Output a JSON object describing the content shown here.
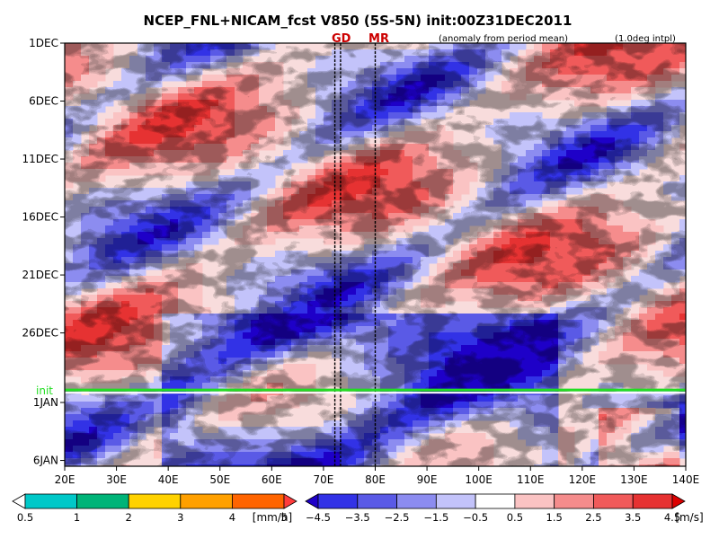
{
  "chart_data": {
    "type": "heatmap",
    "title": "NCEP_FNL+NICAM_fcst V850 (5S-5N) init:00Z31DEC2011",
    "subtitle_left": "(anomaly from period mean)",
    "subtitle_right": "(1.0deg intpl)",
    "xaxis": {
      "ticks": [
        "20E",
        "30E",
        "40E",
        "50E",
        "60E",
        "70E",
        "80E",
        "90E",
        "100E",
        "110E",
        "120E",
        "130E",
        "140E"
      ],
      "tick_values": [
        20,
        30,
        40,
        50,
        60,
        70,
        80,
        90,
        100,
        110,
        120,
        130,
        140
      ],
      "range": [
        20,
        140
      ]
    },
    "yaxis": {
      "ticks": [
        "1DEC",
        "6DEC",
        "11DEC",
        "16DEC",
        "21DEC",
        "26DEC",
        "1JAN",
        "6JAN"
      ],
      "tick_days": [
        0,
        5,
        10,
        15,
        20,
        25,
        31,
        36
      ],
      "range_days": [
        0,
        36.5
      ],
      "direction": "down"
    },
    "markers": [
      {
        "label": "GD",
        "lon": [
          72.2,
          73.3
        ]
      },
      {
        "label": "MR",
        "lon": [
          80
        ]
      }
    ],
    "init_line": {
      "label": "init",
      "day": 30
    }
  },
  "colorbar_precip": {
    "labels": [
      "0.5",
      "1",
      "2",
      "3",
      "4",
      "5"
    ],
    "unit": "[mm/h]",
    "colors": [
      "#ffffff",
      "#00c8c8",
      "#00b478",
      "#ffd200",
      "#ffa000",
      "#ff6400",
      "#ff3c3c"
    ]
  },
  "colorbar_wind": {
    "labels": [
      "−4.5",
      "−3.5",
      "−2.5",
      "−1.5",
      "−0.5",
      "0.5",
      "1.5",
      "2.5",
      "3.5",
      "4.5"
    ],
    "unit": "[m/s]",
    "colors": [
      "#1e00c8",
      "#3232e6",
      "#5a5ae6",
      "#8c8cf0",
      "#c3c3fa",
      "#ffffff",
      "#fac3c3",
      "#f58c8c",
      "#f05a5a",
      "#e63232",
      "#dc0000"
    ]
  }
}
